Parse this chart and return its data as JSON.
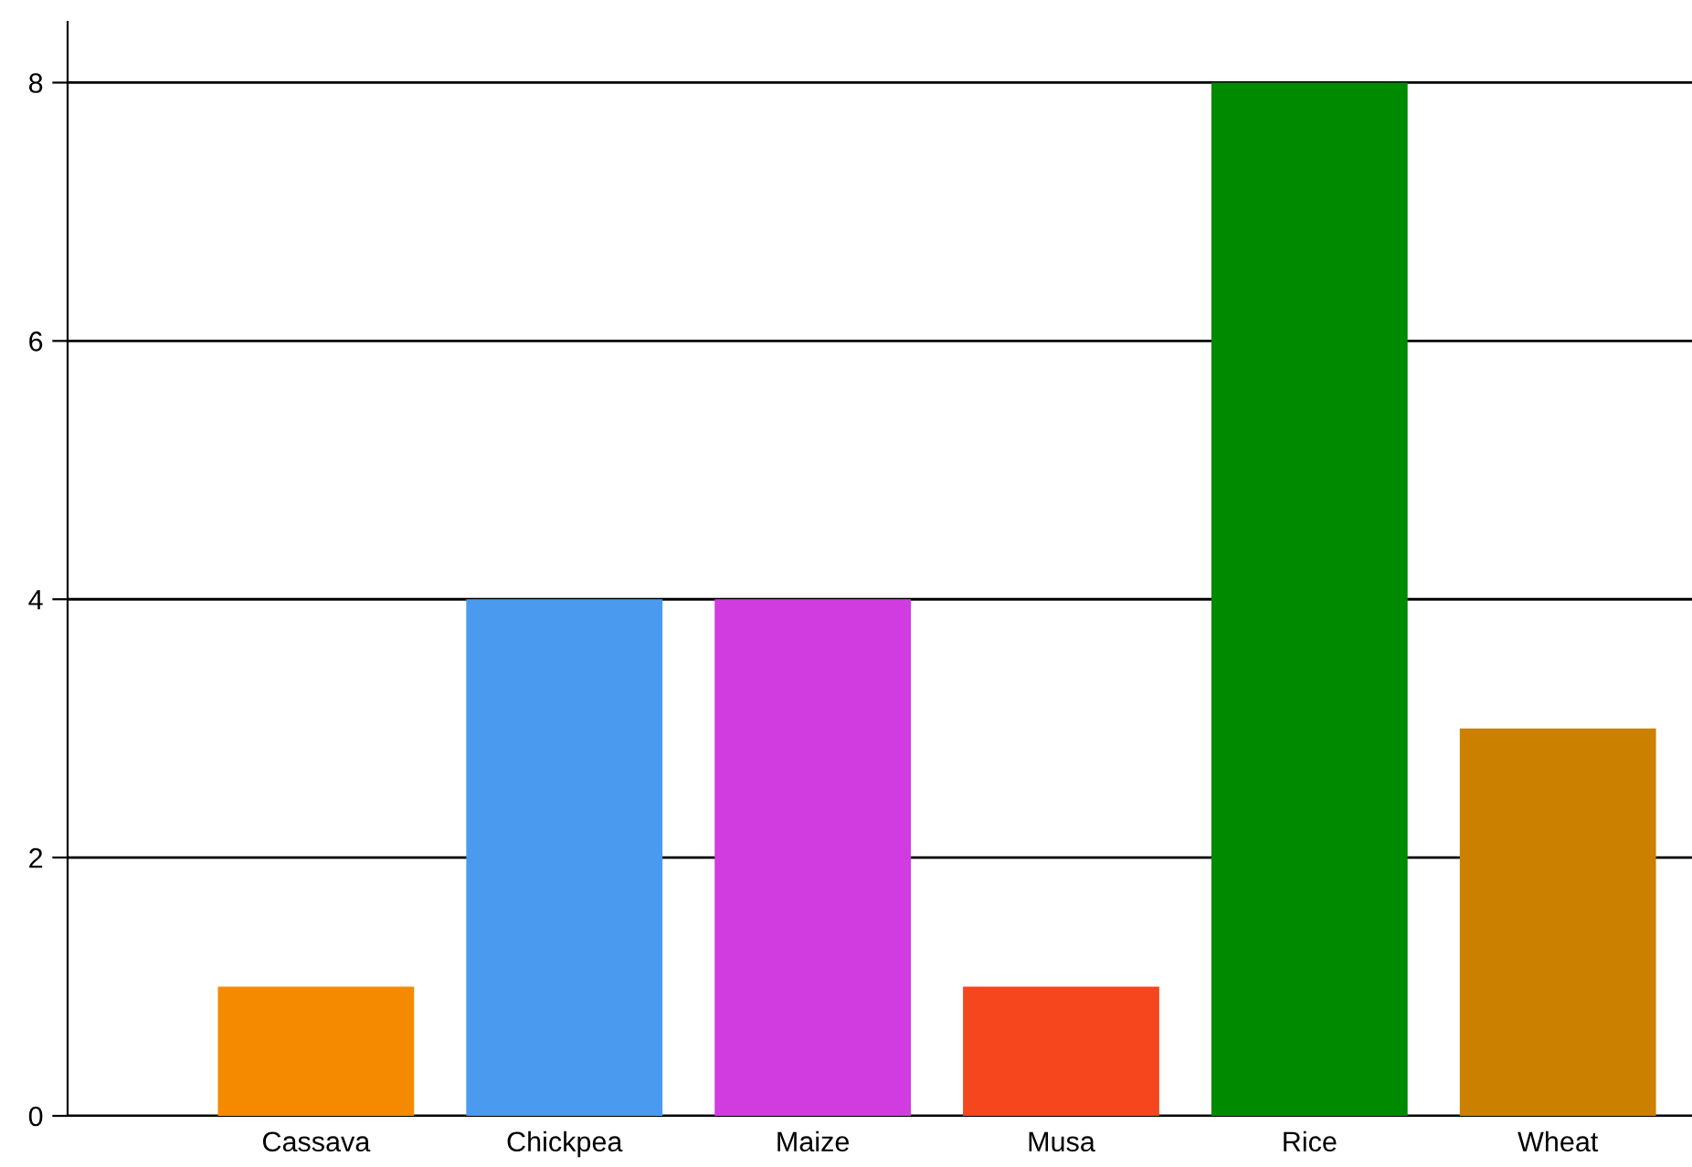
{
  "chart_data": {
    "type": "bar",
    "categories": [
      "Cassava",
      "Chickpea",
      "Maize",
      "Musa",
      "Rice",
      "Wheat"
    ],
    "values": [
      1,
      4,
      4,
      1,
      8,
      3
    ],
    "colors": [
      "#f58a00",
      "#4a9af0",
      "#d03ce0",
      "#f5461e",
      "#008a00",
      "#cc8000"
    ],
    "ylim": [
      0,
      8.47
    ],
    "yticks": [
      0,
      2,
      4,
      6,
      8
    ],
    "grid": "y"
  }
}
